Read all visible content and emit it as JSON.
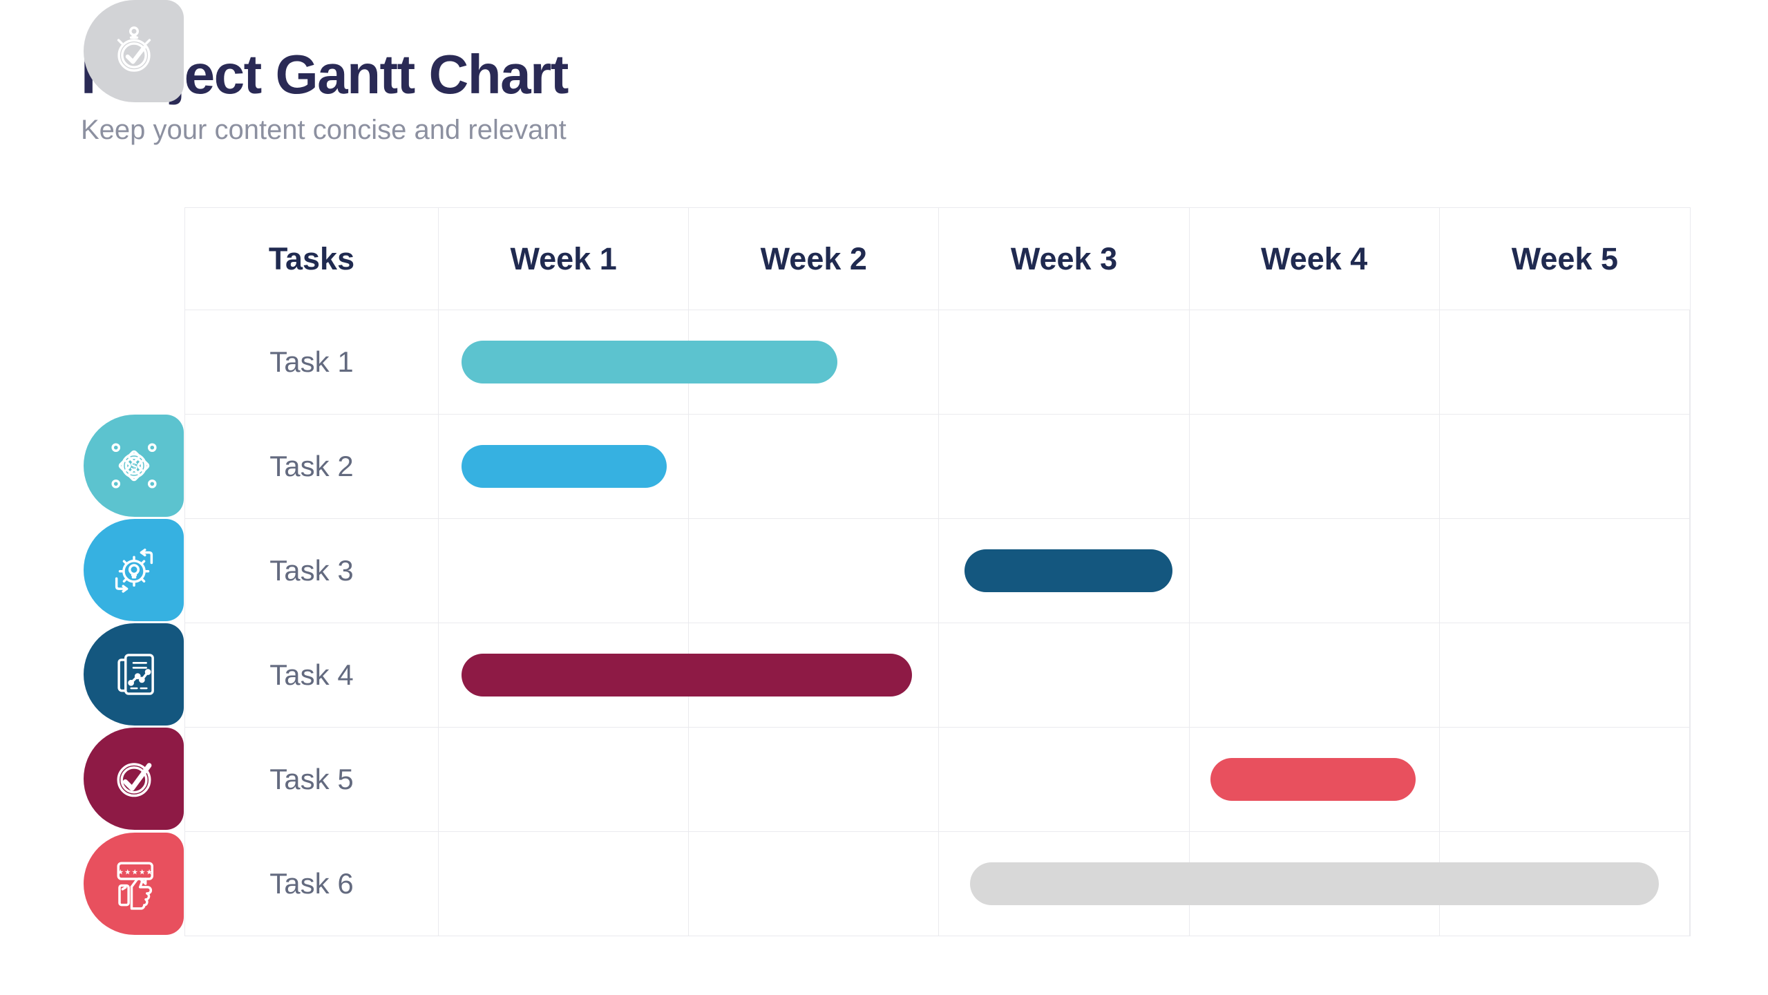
{
  "page": {
    "title": "Project Gantt Chart",
    "subtitle": "Keep your content concise and relevant"
  },
  "table": {
    "columns": [
      "Tasks",
      "Week 1",
      "Week 2",
      "Week 3",
      "Week 4",
      "Week 5"
    ]
  },
  "chart_data": {
    "type": "gantt",
    "time_unit": "week",
    "week_columns": [
      "Week 1",
      "Week 2",
      "Week 3",
      "Week 4",
      "Week 5"
    ],
    "axis_range_weeks": [
      0,
      5
    ],
    "tasks": [
      {
        "label": "Task 1",
        "icon": "funding-network-icon",
        "color": "#5CC3CF",
        "chip_color": "#5CC3CF",
        "start_week": 0.09,
        "end_week": 1.59,
        "duration_weeks": 1.5
      },
      {
        "label": "Task 2",
        "icon": "idea-gear-icon",
        "color": "#36B1E1",
        "chip_color": "#36B1E1",
        "start_week": 0.09,
        "end_week": 0.91,
        "duration_weeks": 0.82
      },
      {
        "label": "Task 3",
        "icon": "report-chart-icon",
        "color": "#14577F",
        "chip_color": "#14577F",
        "start_week": 2.1,
        "end_week": 2.93,
        "duration_weeks": 0.83
      },
      {
        "label": "Task 4",
        "icon": "check-circle-icon",
        "color": "#8E1A45",
        "chip_color": "#8E1A45",
        "start_week": 0.09,
        "end_week": 1.89,
        "duration_weeks": 1.8
      },
      {
        "label": "Task 5",
        "icon": "rating-thumbs-icon",
        "color": "#E8505E",
        "chip_color": "#E8505E",
        "start_week": 3.08,
        "end_week": 3.9,
        "duration_weeks": 0.82
      },
      {
        "label": "Task 6",
        "icon": "stopwatch-check-icon",
        "color": "#D8D8D8",
        "chip_color": "#D2D3D6",
        "start_week": 2.12,
        "end_week": 4.87,
        "duration_weeks": 2.75
      }
    ],
    "title": "Project Gantt Chart",
    "legend": "none",
    "grid": "on"
  },
  "colors": {
    "title_text": "#2A2A55",
    "header_text": "#202A50",
    "task_label_text": "#636A7F",
    "subtitle_text": "#8C90A0",
    "grid_line": "#EAEAEE",
    "background": "#FFFFFF"
  }
}
